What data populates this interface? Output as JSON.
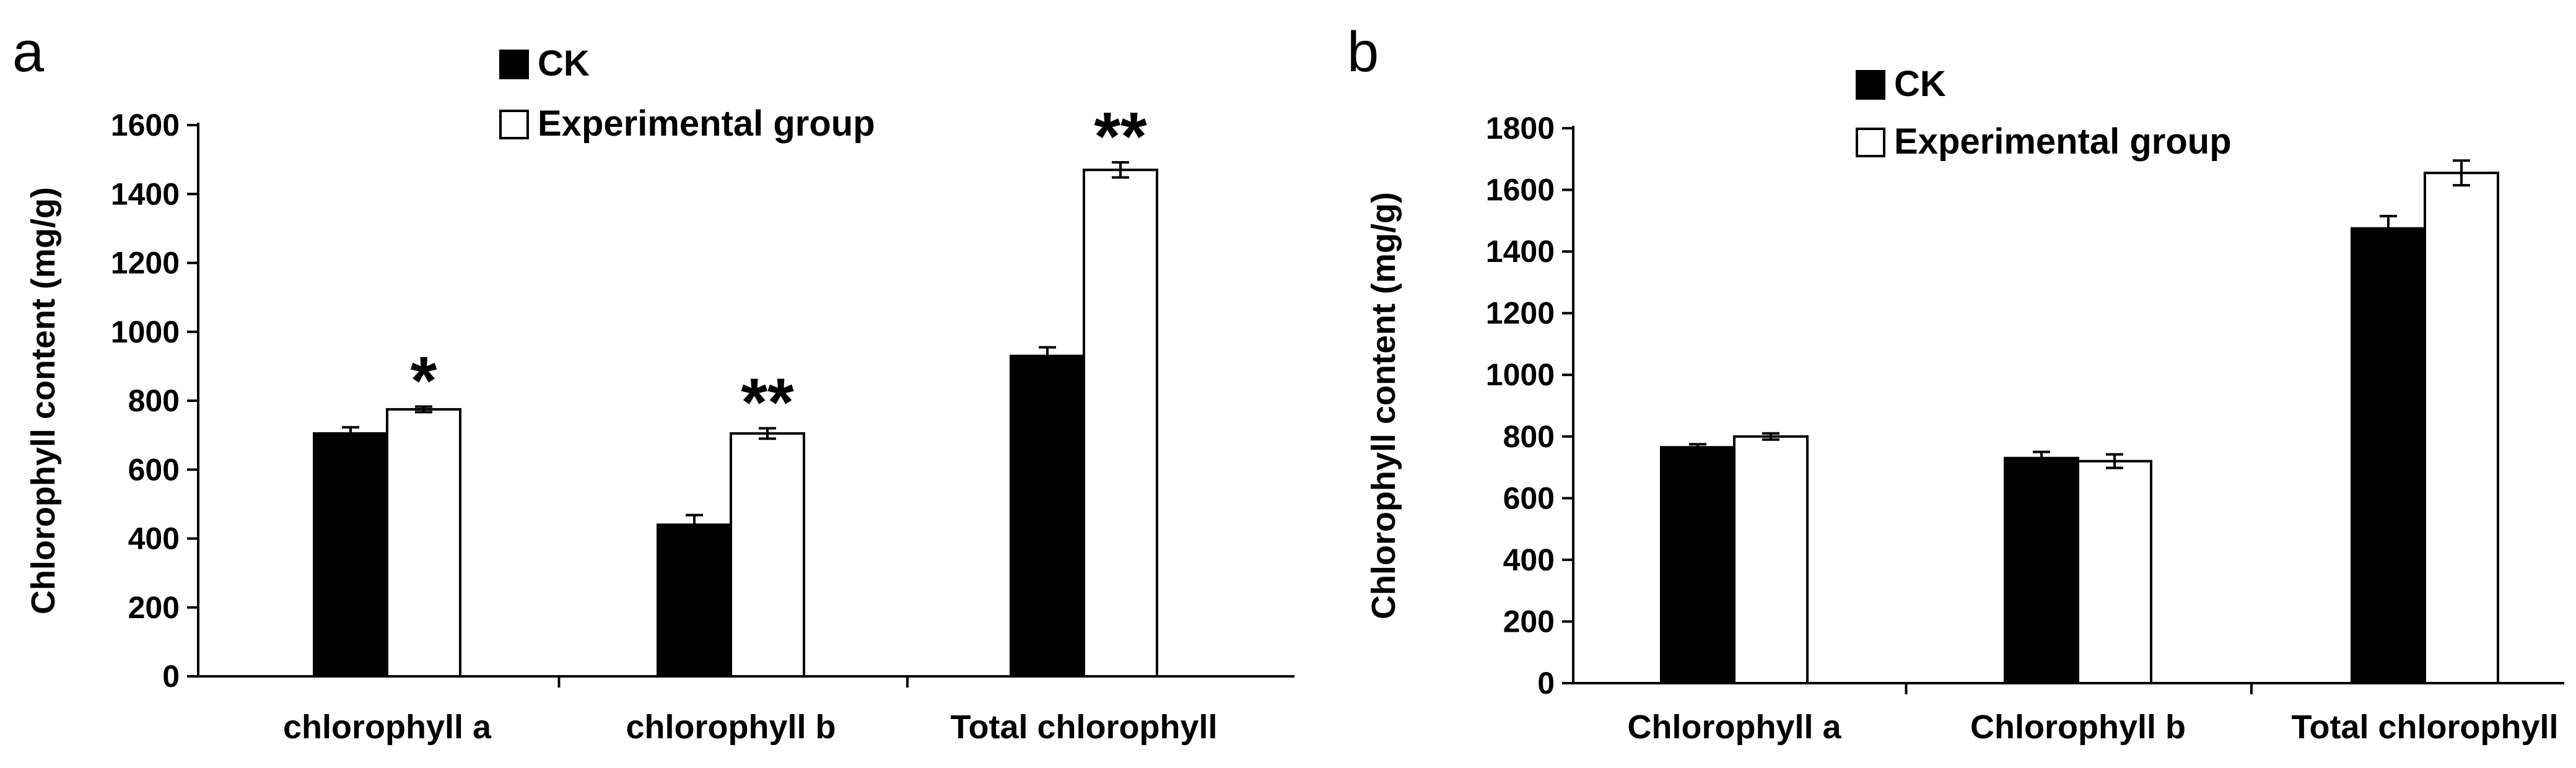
{
  "chart_data": [
    {
      "panel": "a",
      "type": "bar",
      "title": "",
      "xlabel": "",
      "ylabel": "Chlorophyll content (mg/g)",
      "ylim": [
        0,
        1600
      ],
      "yticks": [
        0,
        200,
        400,
        600,
        800,
        1000,
        1200,
        1400,
        1600
      ],
      "categories": [
        "chlorophyll a",
        "chlorophyll b",
        "Total chlorophyll"
      ],
      "series": [
        {
          "name": "CK",
          "color": "#000000",
          "values": [
            705,
            440,
            930
          ],
          "errors": [
            18,
            28,
            25
          ]
        },
        {
          "name": "Experimental group",
          "color": "#ffffff",
          "values": [
            775,
            705,
            1470
          ],
          "errors": [
            8,
            15,
            22
          ]
        }
      ],
      "annotations": [
        "*",
        "**",
        "**"
      ],
      "legend_position": "top-center",
      "grid": false
    },
    {
      "panel": "b",
      "type": "bar",
      "title": "",
      "xlabel": "",
      "ylabel": "Chlorophyll content (mg/g)",
      "ylim": [
        0,
        1800
      ],
      "yticks": [
        0,
        200,
        400,
        600,
        800,
        1000,
        1200,
        1400,
        1600,
        1800
      ],
      "categories": [
        "Chlorophyll a",
        "Chlorophyll b",
        "Total chlorophyll"
      ],
      "series": [
        {
          "name": "CK",
          "color": "#000000",
          "values": [
            765,
            730,
            1475
          ],
          "errors": [
            10,
            20,
            40
          ]
        },
        {
          "name": "Experimental group",
          "color": "#ffffff",
          "values": [
            800,
            720,
            1655
          ],
          "errors": [
            10,
            22,
            40
          ]
        }
      ],
      "annotations": [
        "",
        "",
        ""
      ],
      "legend_position": "top-center",
      "grid": false
    }
  ]
}
